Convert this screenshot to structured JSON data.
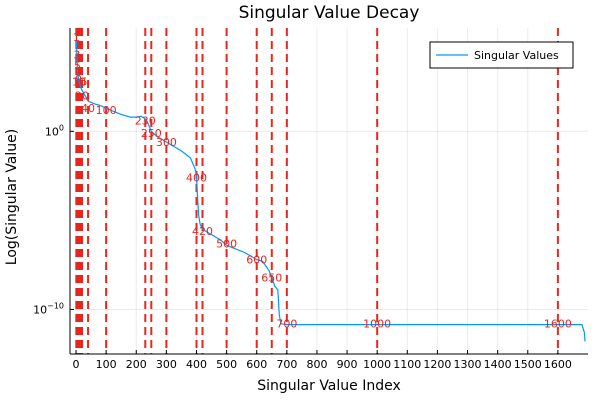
{
  "chart_data": {
    "type": "line",
    "title": "Singular Value Decay",
    "xlabel": "Singular Value Index",
    "ylabel": "Log(Singular Value)",
    "xlim": [
      -20,
      1700
    ],
    "ylog10_lim": [
      -12.5,
      5.8
    ],
    "y_scale": "log",
    "grid": true,
    "legend_position": "top-right",
    "x_ticks": [
      0,
      100,
      200,
      300,
      400,
      500,
      600,
      700,
      800,
      900,
      1000,
      1100,
      1200,
      1300,
      1400,
      1500,
      1600
    ],
    "y_ticks": [
      {
        "log10": 0,
        "label": "10^0",
        "base": "10",
        "exp": "0"
      },
      {
        "log10": -10,
        "label": "10^-10",
        "base": "10",
        "exp": "−10"
      }
    ],
    "series": [
      {
        "name": "Singular Values",
        "color": "#009AFA",
        "points": [
          [
            1,
            5.3
          ],
          [
            3,
            4.2
          ],
          [
            5,
            3.5
          ],
          [
            8,
            3.0
          ],
          [
            10,
            2.8
          ],
          [
            15,
            2.5
          ],
          [
            20,
            2.3
          ],
          [
            30,
            2.0
          ],
          [
            40,
            1.7
          ],
          [
            60,
            1.55
          ],
          [
            80,
            1.45
          ],
          [
            100,
            1.3
          ],
          [
            120,
            1.15
          ],
          [
            150,
            0.95
          ],
          [
            180,
            0.8
          ],
          [
            200,
            0.8
          ],
          [
            215,
            0.85
          ],
          [
            230,
            0.7
          ],
          [
            240,
            0.4
          ],
          [
            250,
            0.0
          ],
          [
            270,
            -0.3
          ],
          [
            290,
            -0.5
          ],
          [
            300,
            -0.6
          ],
          [
            320,
            -0.8
          ],
          [
            350,
            -1.1
          ],
          [
            380,
            -1.5
          ],
          [
            395,
            -2.1
          ],
          [
            400,
            -2.5
          ],
          [
            403,
            -3.5
          ],
          [
            407,
            -4.7
          ],
          [
            412,
            -5.2
          ],
          [
            420,
            -5.5
          ],
          [
            450,
            -5.8
          ],
          [
            480,
            -6.1
          ],
          [
            500,
            -6.4
          ],
          [
            530,
            -6.6
          ],
          [
            560,
            -6.8
          ],
          [
            600,
            -7.2
          ],
          [
            620,
            -7.3
          ],
          [
            640,
            -7.8
          ],
          [
            650,
            -8.2
          ],
          [
            660,
            -8.7
          ],
          [
            670,
            -8.9
          ],
          [
            675,
            -10.3
          ],
          [
            680,
            -10.8
          ],
          [
            700,
            -10.85
          ],
          [
            1000,
            -10.85
          ],
          [
            1600,
            -10.85
          ],
          [
            1680,
            -10.85
          ],
          [
            1688,
            -11.3
          ],
          [
            1690,
            -11.8
          ]
        ]
      }
    ],
    "markers": {
      "color": "#E6261F",
      "lines": [
        {
          "x": 1,
          "label": "1",
          "log10": 5.3
        },
        {
          "x": 3,
          "label": "3",
          "log10": 4.3
        },
        {
          "x": 5,
          "label": "5",
          "log10": 3.7
        },
        {
          "x": 8,
          "label": "8",
          "log10": 3.1
        },
        {
          "x": 10,
          "label": "10",
          "log10": 2.8
        },
        {
          "x": 15,
          "label": "15",
          "log10": 2.8
        },
        {
          "x": 20,
          "label": "20",
          "log10": 2.0
        },
        {
          "x": 40,
          "label": "40",
          "log10": 1.3
        },
        {
          "x": 100,
          "label": "100",
          "log10": 1.2
        },
        {
          "x": 230,
          "label": "230",
          "log10": 0.6
        },
        {
          "x": 250,
          "label": "250",
          "log10": -0.1
        },
        {
          "x": 300,
          "label": "300",
          "log10": -0.6
        },
        {
          "x": 400,
          "label": "400",
          "log10": -2.6
        },
        {
          "x": 420,
          "label": "420",
          "log10": -5.6
        },
        {
          "x": 500,
          "label": "500",
          "log10": -6.3
        },
        {
          "x": 600,
          "label": "600",
          "log10": -7.2
        },
        {
          "x": 650,
          "label": "650",
          "log10": -8.2
        },
        {
          "x": 700,
          "label": "700",
          "log10": -10.8
        },
        {
          "x": 1000,
          "label": "1000",
          "log10": -10.8
        },
        {
          "x": 1600,
          "label": "1600",
          "log10": -10.8
        }
      ]
    }
  }
}
